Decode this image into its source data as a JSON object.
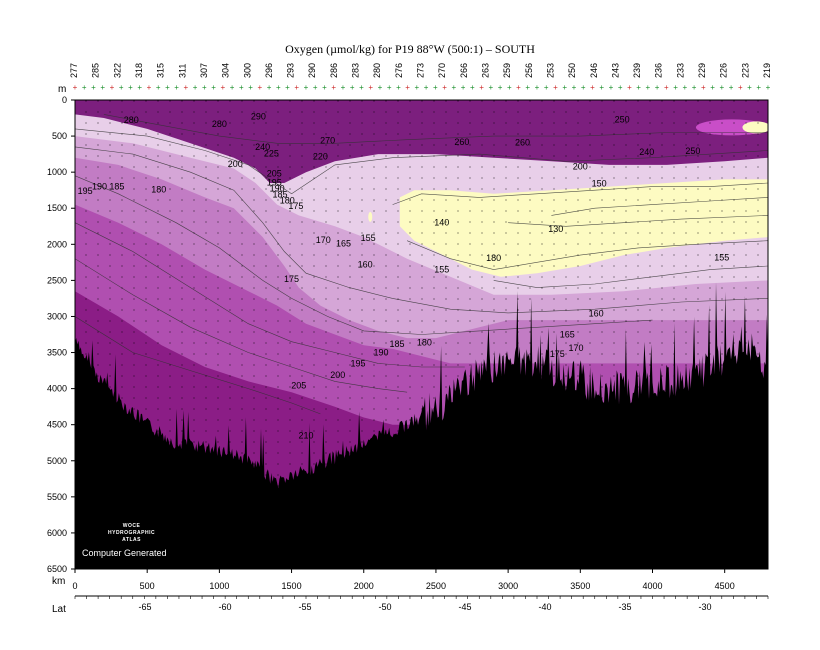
{
  "title": "Oxygen (µmol/kg) for P19 88°W (500:1) – SOUTH",
  "credit": "Computer Generated",
  "logo_lines": [
    "WOCE",
    "HYDROGRAPHIC",
    "ATLAS"
  ],
  "colors": {
    "band_ge_215": "#8b1d86",
    "band_200_215": "#b04fb0",
    "band_185_200": "#c27cc4",
    "band_170_185": "#d5a6d7",
    "band_150_170": "#e8cfe9",
    "band_lt_140": "#fdfbc2",
    "upper_high": "#7c1f7e",
    "bottom": "#000000",
    "station_marks": "#1a8f2b",
    "station_marks_alt": "#cc2a2a"
  },
  "chart_data": {
    "type": "heatmap",
    "title": "Oxygen (µmol/kg) for P19 88°W (500:1) – SOUTH",
    "ylabel": "m",
    "xlabel": "km",
    "x2label": "Lat",
    "ylim": [
      6500,
      0
    ],
    "xlim": [
      0,
      4800
    ],
    "y_ticks": [
      0,
      500,
      1000,
      1500,
      2000,
      2500,
      3000,
      3500,
      4000,
      4500,
      5000,
      5500,
      6000,
      6500
    ],
    "x_ticks": [
      0,
      500,
      1000,
      1500,
      2000,
      2500,
      3000,
      3500,
      4000,
      4500
    ],
    "lat_ticks": [
      -65,
      -60,
      -55,
      -50,
      -45,
      -40,
      -35,
      -30
    ],
    "station_labels": [
      "277",
      "285",
      "322",
      "318",
      "315",
      "311",
      "307",
      "304",
      "300",
      "296",
      "293",
      "290",
      "286",
      "283",
      "280",
      "276",
      "273",
      "270",
      "266",
      "263",
      "259",
      "256",
      "253",
      "250",
      "246",
      "243",
      "239",
      "236",
      "233",
      "229",
      "226",
      "223",
      "219"
    ],
    "contour_labels": [
      {
        "v": "290",
        "x": 1270,
        "y": 230
      },
      {
        "v": "280",
        "x": 390,
        "y": 280
      },
      {
        "v": "280",
        "x": 1000,
        "y": 330
      },
      {
        "v": "270",
        "x": 1750,
        "y": 560
      },
      {
        "v": "260",
        "x": 2680,
        "y": 580
      },
      {
        "v": "260",
        "x": 3100,
        "y": 590
      },
      {
        "v": "250",
        "x": 3790,
        "y": 270
      },
      {
        "v": "240",
        "x": 1300,
        "y": 650
      },
      {
        "v": "225",
        "x": 1360,
        "y": 740
      },
      {
        "v": "220",
        "x": 1700,
        "y": 780
      },
      {
        "v": "240",
        "x": 3960,
        "y": 720
      },
      {
        "v": "250",
        "x": 4280,
        "y": 710
      },
      {
        "v": "200",
        "x": 1110,
        "y": 890
      },
      {
        "v": "200",
        "x": 3500,
        "y": 920
      },
      {
        "v": "205",
        "x": 1380,
        "y": 1020
      },
      {
        "v": "195",
        "x": 1380,
        "y": 1140
      },
      {
        "v": "190",
        "x": 1400,
        "y": 1230
      },
      {
        "v": "185",
        "x": 1420,
        "y": 1310
      },
      {
        "v": "180",
        "x": 1470,
        "y": 1390
      },
      {
        "v": "175",
        "x": 1530,
        "y": 1470
      },
      {
        "v": "150",
        "x": 3630,
        "y": 1160
      },
      {
        "v": "195",
        "x": 70,
        "y": 1260
      },
      {
        "v": "190",
        "x": 170,
        "y": 1200
      },
      {
        "v": "185",
        "x": 290,
        "y": 1200
      },
      {
        "v": "180",
        "x": 580,
        "y": 1240
      },
      {
        "v": "140",
        "x": 2540,
        "y": 1700
      },
      {
        "v": "130",
        "x": 3330,
        "y": 1790
      },
      {
        "v": "170",
        "x": 1720,
        "y": 1940
      },
      {
        "v": "165",
        "x": 1860,
        "y": 1990
      },
      {
        "v": "155",
        "x": 2030,
        "y": 1910
      },
      {
        "v": "160",
        "x": 2010,
        "y": 2280
      },
      {
        "v": "155",
        "x": 2540,
        "y": 2350
      },
      {
        "v": "180",
        "x": 2900,
        "y": 2190
      },
      {
        "v": "155",
        "x": 4480,
        "y": 2180
      },
      {
        "v": "175",
        "x": 1500,
        "y": 2480
      },
      {
        "v": "160",
        "x": 3610,
        "y": 2960
      },
      {
        "v": "165",
        "x": 3410,
        "y": 3250
      },
      {
        "v": "170",
        "x": 3470,
        "y": 3440
      },
      {
        "v": "175",
        "x": 3340,
        "y": 3520
      },
      {
        "v": "185",
        "x": 2230,
        "y": 3380
      },
      {
        "v": "180",
        "x": 2420,
        "y": 3360
      },
      {
        "v": "190",
        "x": 2120,
        "y": 3500
      },
      {
        "v": "195",
        "x": 1960,
        "y": 3650
      },
      {
        "v": "200",
        "x": 1820,
        "y": 3810
      },
      {
        "v": "205",
        "x": 1550,
        "y": 3960
      },
      {
        "v": "210",
        "x": 1600,
        "y": 4650
      }
    ]
  },
  "axis": {
    "y_unit": "m",
    "x_unit": "km",
    "lat_unit": "Lat"
  }
}
